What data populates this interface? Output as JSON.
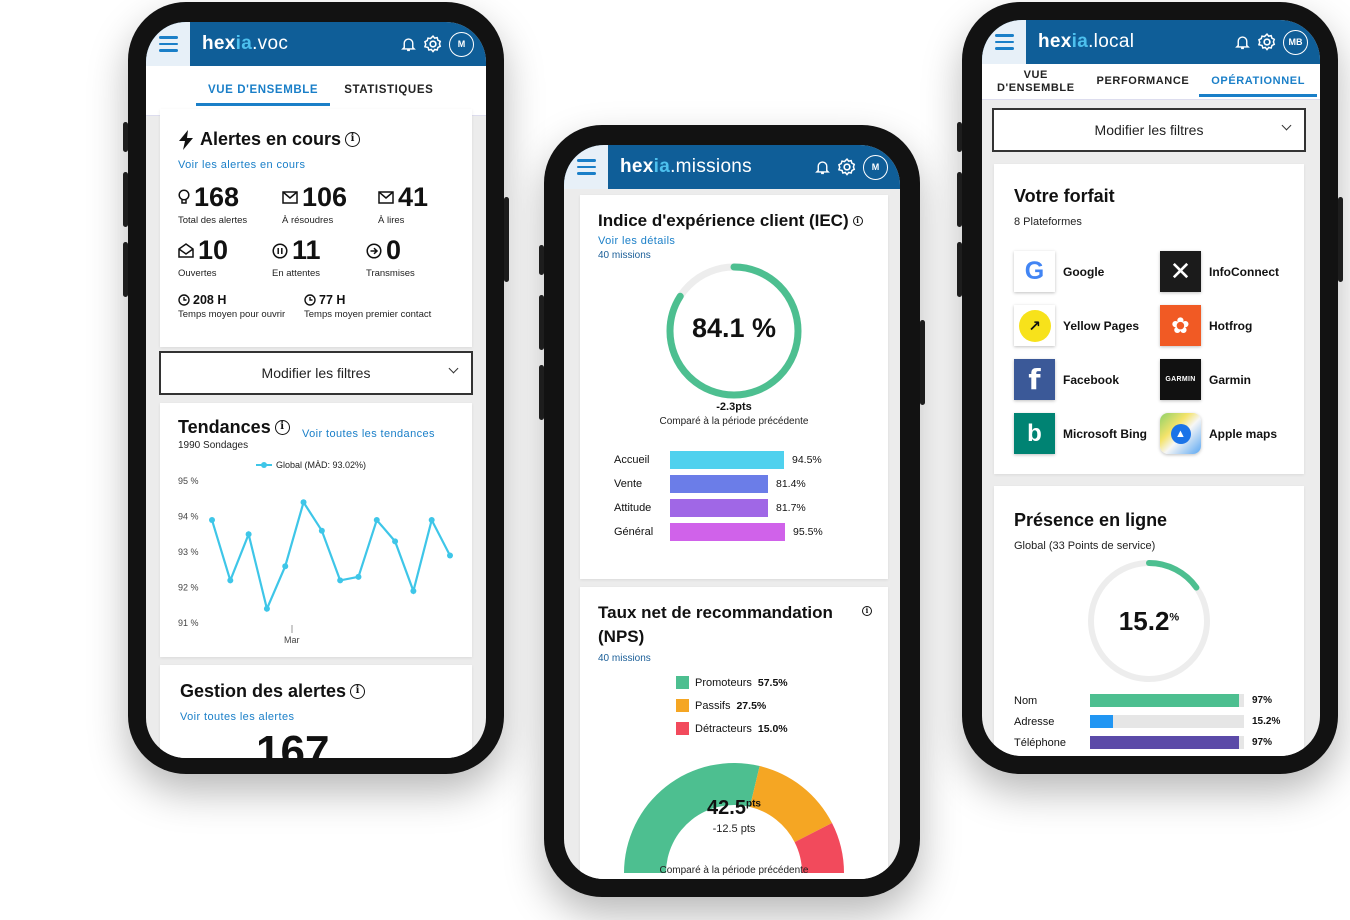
{
  "voc": {
    "brand": {
      "part1": "hex",
      "part2": "ia",
      "part3": ".voc"
    },
    "avatar": "M",
    "tabs": [
      {
        "label": "VUE D'ENSEMBLE",
        "active": true
      },
      {
        "label": "STATISTIQUES",
        "active": false
      }
    ],
    "alerts": {
      "title": "Alertes en cours",
      "link": "Voir les alertes en cours",
      "stats": [
        {
          "icon": "lightbulb-icon",
          "value": "168",
          "label": "Total des alertes"
        },
        {
          "icon": "envelope-icon",
          "value": "106",
          "label": "À résoudres"
        },
        {
          "icon": "envelope-icon",
          "value": "41",
          "label": "À lires"
        },
        {
          "icon": "envelope-open-icon",
          "value": "10",
          "label": "Ouvertes"
        },
        {
          "icon": "pause-icon",
          "value": "11",
          "label": "En attentes"
        },
        {
          "icon": "arrow-circle-icon",
          "value": "0",
          "label": "Transmises"
        }
      ],
      "times": [
        {
          "value": "208 H",
          "label": "Temps moyen pour ouvrir"
        },
        {
          "value": "77 H",
          "label": "Temps moyen premier contact"
        }
      ]
    },
    "filter": "Modifier les filtres",
    "trends": {
      "title": "Tendances",
      "link": "Voir toutes les tendances",
      "subtitle": "1990 Sondages",
      "legend": "Global (MÀD: 93.02%)"
    },
    "alert_mgmt": {
      "title": "Gestion des alertes",
      "link": "Voir toutes les alertes",
      "big_value": "167"
    }
  },
  "missions": {
    "brand": {
      "part1": "hex",
      "part2": "ia",
      "part3": ".missions"
    },
    "avatar": "M",
    "iec": {
      "title": "Indice d'expérience client (IEC)",
      "link": "Voir les détails",
      "count": "40 missions",
      "value": "84.1 %",
      "ratio": 0.841,
      "delta": "-2.3pts",
      "compare": "Comparé à la période précédente"
    },
    "nps": {
      "title_line1": "Taux net de recommandation",
      "title_line2": "(NPS)",
      "count": "40 missions",
      "value": "42.5",
      "unit": "pts",
      "delta": "-12.5 pts",
      "compare": "Comparé à la période précédente"
    }
  },
  "local": {
    "brand": {
      "part1": "hex",
      "part2": "ia",
      "part3": ".local"
    },
    "avatar": "MB",
    "tabs": [
      {
        "line1": "VUE",
        "line2": "D'ENSEMBLE",
        "active": false
      },
      {
        "line1": "PERFORMANCE",
        "line2": "",
        "active": false
      },
      {
        "line1": "OPÉRATIONNEL",
        "line2": "",
        "active": true
      }
    ],
    "filter": "Modifier les filtres",
    "plan": {
      "title": "Votre forfait",
      "subtitle": "8 Plateformes",
      "platforms": [
        {
          "name": "Google",
          "icon": "google-logo-icon"
        },
        {
          "name": "InfoConnect",
          "icon": "infoconnect-logo-icon"
        },
        {
          "name": "Yellow Pages",
          "icon": "yellow-pages-logo-icon"
        },
        {
          "name": "Hotfrog",
          "icon": "hotfrog-logo-icon"
        },
        {
          "name": "Facebook",
          "icon": "facebook-logo-icon"
        },
        {
          "name": "Garmin",
          "icon": "garmin-logo-icon",
          "logo_text": "GARMIN"
        },
        {
          "name": "Microsoft Bing",
          "icon": "bing-logo-icon"
        },
        {
          "name": "Apple maps",
          "icon": "apple-maps-logo-icon"
        }
      ]
    },
    "presence": {
      "title": "Présence en ligne",
      "subtitle": "Global (33 Points de service)",
      "value": "15.2",
      "unit": "%",
      "ratio": 0.152
    }
  },
  "chart_data": [
    {
      "type": "line",
      "series": [
        {
          "name": "Global (MÀD: 93.02%)",
          "values": [
            93.9,
            92.2,
            93.5,
            91.4,
            92.6,
            94.4,
            93.6,
            92.2,
            92.3,
            93.9,
            93.3,
            91.9,
            93.9,
            92.9
          ]
        }
      ],
      "ylim": [
        91,
        95
      ],
      "yticks": [
        "95 %",
        "94 %",
        "93 %",
        "92 %",
        "91 %"
      ],
      "xticks": [
        "Mar"
      ],
      "color": "#3ec6e8"
    },
    {
      "type": "bar",
      "categories": [
        "Accueil",
        "Vente",
        "Attitude",
        "Général"
      ],
      "values": [
        94.5,
        81.4,
        81.7,
        95.5
      ],
      "labels": [
        "94.5%",
        "81.4%",
        "81.7%",
        "95.5%"
      ],
      "colors": [
        "#4fd1ee",
        "#6b7de8",
        "#a067e6",
        "#d062ea"
      ]
    },
    {
      "type": "pie",
      "categories": [
        "Promoteurs",
        "Passifs",
        "Détracteurs"
      ],
      "values": [
        57.5,
        27.5,
        15.0
      ],
      "labels": [
        "57.5%",
        "27.5%",
        "15.0%"
      ],
      "colors": [
        "#4dbf90",
        "#f5a623",
        "#f24a5c"
      ]
    },
    {
      "type": "bar",
      "categories": [
        "Nom",
        "Adresse",
        "Téléphone"
      ],
      "values": [
        97,
        15.2,
        97
      ],
      "labels": [
        "97%",
        "15.2%",
        "97%"
      ],
      "colors": [
        "#4dbf90",
        "#2196f3",
        "#5b4aa8"
      ]
    }
  ]
}
